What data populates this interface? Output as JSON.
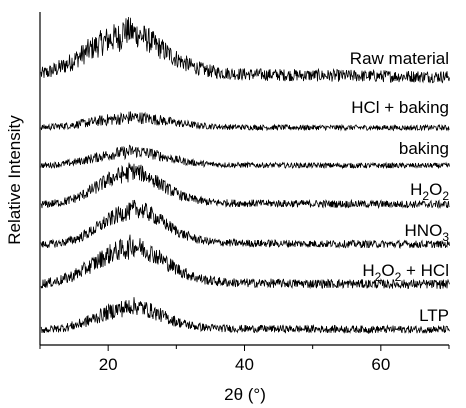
{
  "chart_data": {
    "type": "line",
    "title": "",
    "xlabel": "2θ (°)",
    "ylabel": "Relative Intensity",
    "xlim": [
      10,
      70
    ],
    "xticks": [
      20,
      40,
      60
    ],
    "yticks": [],
    "grid": false,
    "legend": "labels placed at the right end of each curve",
    "series": [
      {
        "name": "Raw material",
        "label": {
          "base": "Raw material"
        },
        "peak_x": 22,
        "peak_width": 5.5,
        "baseline": 0.82,
        "peak_height": 0.73,
        "tail": 0.12,
        "noise": 0.11
      },
      {
        "name": "HCl + baking",
        "label": {
          "base": "HCl + baking"
        },
        "peak_x": 23,
        "peak_width": 5.5,
        "baseline": 0.1,
        "peak_height": 0.32,
        "tail": 0.04,
        "noise": 0.09
      },
      {
        "name": "baking",
        "label": {
          "base": "baking"
        },
        "peak_x": 23,
        "peak_width": 5,
        "baseline": 0.1,
        "peak_height": 0.45,
        "tail": 0.05,
        "noise": 0.09
      },
      {
        "name": "H2O2",
        "label": {
          "base": "H",
          "sub1": "2",
          "mid": "O",
          "sub2": "2",
          "tail": ""
        },
        "peak_x": 23,
        "peak_width": 4.5,
        "baseline": 0.1,
        "peak_height": 0.82,
        "tail": 0.08,
        "noise": 0.1
      },
      {
        "name": "HNO3",
        "label": {
          "base": "HNO",
          "sub1": "3"
        },
        "peak_x": 23.5,
        "peak_width": 4.5,
        "baseline": 0.1,
        "peak_height": 0.88,
        "tail": 0.08,
        "noise": 0.1
      },
      {
        "name": "H2O2 + HCl",
        "label": {
          "base": "H",
          "sub1": "2",
          "mid": "O",
          "sub2": "2",
          "tail": " + HCl"
        },
        "peak_x": 23,
        "peak_width": 5,
        "baseline": 0.1,
        "peak_height": 0.95,
        "tail": 0.09,
        "noise": 0.12
      },
      {
        "name": "LTP",
        "label": {
          "base": "LTP"
        },
        "peak_x": 23,
        "peak_width": 4.5,
        "baseline": 0.1,
        "peak_height": 0.58,
        "tail": 0.06,
        "noise": 0.1
      }
    ]
  }
}
